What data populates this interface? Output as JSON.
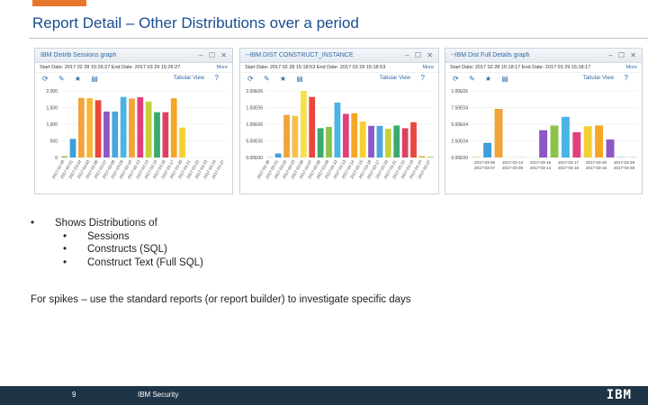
{
  "slide": {
    "title": "Report Detail – Other Distributions over a period",
    "bullet": "Shows Distributions of",
    "sub_bullets": [
      "Sessions",
      "Constructs (SQL)",
      "Construct Text (Full SQL)"
    ],
    "note": "For spikes – use the standard reports (or report builder) to investigate specific days",
    "page_number": "9",
    "footer_label": "IBM Security",
    "logo_text": "IBM"
  },
  "panels": [
    {
      "title": "IBM Distrib Sessions graph",
      "dates": "Start Date: 2017 02 28 15:26:27   End Date: 2017 03 29 15:26:27",
      "more": "More",
      "tabular": "Tabular View",
      "controls": "– ☐ ✕"
    },
    {
      "title": "--IBM DIST CONSTRUCT_INSTANCE",
      "dates": "Start Date: 2017 02 28 15:18:53   End Date: 2017 03 29 15:18:53",
      "more": "More",
      "tabular": "Tabular View",
      "controls": "– ☐ ✕"
    },
    {
      "title": "--IBM Dist Full Details graph",
      "dates": "Start Date: 2017 02 28 15:18:17   End Date: 2017 03 29 15:18:17",
      "more": "More",
      "tabular": "Tabular View",
      "controls": "– ☐ ✕"
    }
  ],
  "chart_data": [
    {
      "type": "bar",
      "ylim": [
        0,
        2000
      ],
      "yticks": [
        "2,000",
        "1,500",
        "1,000",
        "500",
        "0"
      ],
      "categories": [
        "2017-02-28",
        "2017-03-01",
        "2017-03-02",
        "2017-03-03",
        "2017-03-06",
        "2017-03-07",
        "2017-03-08",
        "2017-03-09",
        "2017-03-10",
        "2017-03-13",
        "2017-03-14",
        "2017-03-15",
        "2017-03-16",
        "2017-03-17",
        "2017-03-20",
        "2017-03-21",
        "2017-03-22",
        "2017-03-23",
        "2017-03-24",
        "2017-03-27"
      ],
      "values": [
        40,
        560,
        1790,
        1780,
        1720,
        1380,
        1380,
        1820,
        1770,
        1810,
        1680,
        1360,
        1360,
        1780,
        900,
        0,
        0,
        0,
        0,
        0
      ],
      "colors": [
        "#8bc34a",
        "#3d9fd8",
        "#f2a33a",
        "#f7b733",
        "#e9473d",
        "#8e57c6",
        "#4aa6dc",
        "#4bb4e6",
        "#f2a33a",
        "#e04080",
        "#c2d43a",
        "#3aaa6e",
        "#e04060",
        "#f5a623",
        "#f5d033",
        "#c6d63a",
        "#3aaa6e",
        "#e9473d",
        "#f5a623",
        "#8bc34a"
      ]
    },
    {
      "type": "bar",
      "ylim": [
        0,
        2000000
      ],
      "yticks": [
        "2.00E06",
        "1.50E06",
        "1.00E06",
        "5.00E05",
        "0.00E00"
      ],
      "categories": [
        "2017-02-28",
        "2017-03-01",
        "2017-03-02",
        "2017-03-03",
        "2017-03-06",
        "2017-03-07",
        "2017-03-08",
        "2017-03-09",
        "2017-03-10",
        "2017-03-13",
        "2017-03-14",
        "2017-03-15",
        "2017-03-16",
        "2017-03-17",
        "2017-03-20",
        "2017-03-21",
        "2017-03-22",
        "2017-03-23",
        "2017-03-24",
        "2017-03-27"
      ],
      "values": [
        10000,
        120000,
        1280000,
        1250000,
        2000000,
        1820000,
        880000,
        920000,
        1650000,
        1310000,
        1330000,
        1080000,
        950000,
        950000,
        860000,
        960000,
        880000,
        1060000,
        40000,
        20000
      ],
      "colors": [
        "#f2a33a",
        "#3d9fd8",
        "#f2a33a",
        "#f5c14a",
        "#f7e14a",
        "#e9473d",
        "#3aaa6e",
        "#8bc34a",
        "#4bb4e6",
        "#e04080",
        "#f5a623",
        "#f5d033",
        "#8e57c6",
        "#4aa6dc",
        "#c2d43a",
        "#3aaa6e",
        "#e04060",
        "#e9473d",
        "#f5a623",
        "#8bc34a"
      ]
    },
    {
      "type": "bar",
      "ylim": [
        0,
        100000
      ],
      "yticks": [
        "1.00E05",
        "7.50E04",
        "5.00E04",
        "2.50E04",
        "0.00E00"
      ],
      "categories": [
        "2017-03-06",
        "2017-03-07",
        "2017-03-08",
        "2017-03-09",
        "2017-03-10",
        "2017-03-13",
        "2017-03-14",
        "2017-03-15",
        "2017-03-16",
        "2017-03-17",
        "2017-03-20",
        "2017-03-21",
        "2017-03-22",
        "2017-03-28",
        "2017-03-29"
      ],
      "values": [
        600,
        22000,
        73000,
        300,
        300,
        0,
        41000,
        48000,
        61000,
        38000,
        47000,
        48000,
        27000,
        500,
        300
      ],
      "colors": [
        "#8bc34a",
        "#3d9fd8",
        "#f2a33a",
        "#f7d64a",
        "#8bc34a",
        "#ffffff",
        "#8e57c6",
        "#8bc34a",
        "#4bb4e6",
        "#e04080",
        "#f5d033",
        "#f5a623",
        "#8e57c6",
        "#4bb4e6",
        "#e04060"
      ],
      "xlabels_top": [
        "2017-03-06",
        "2017-03-13",
        "2017-03-15",
        "2017-03-17",
        "2017-03-20",
        "2017-03-29"
      ],
      "xlabels_bottom": [
        "2017-03-07",
        "2017-03-09",
        "2017-03-14",
        "2017-03-16",
        "2017-03-18",
        "2017-03-28"
      ]
    }
  ]
}
